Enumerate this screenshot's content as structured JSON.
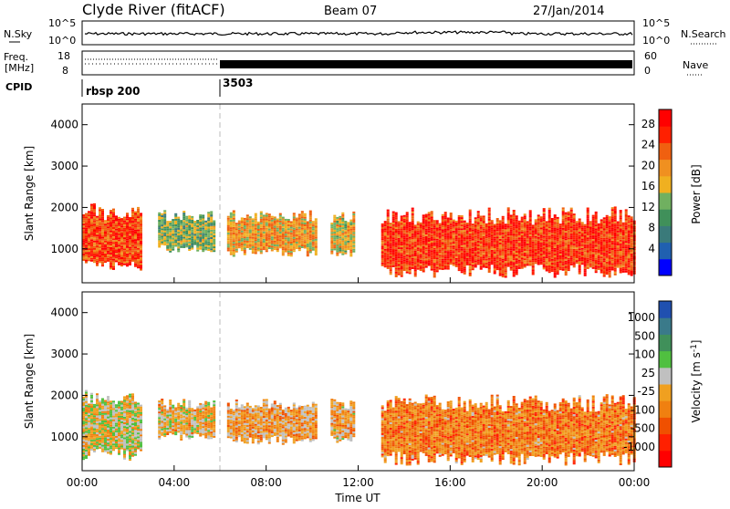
{
  "header": {
    "title": "Clyde River (fitACF)",
    "beam": "Beam 07",
    "date": "27/Jan/2014"
  },
  "noise_panel": {
    "left_label": "N.Sky",
    "right_label": "N.Search",
    "left_ticks": [
      "10^5",
      "10^0"
    ],
    "right_ticks": [
      "10^5",
      "10^0"
    ]
  },
  "freq_panel": {
    "left_label_1": "Freq.",
    "left_label_2": "[MHz]",
    "left_ticks": [
      "18",
      "8"
    ],
    "right_label": "Nave",
    "right_ticks": [
      "60",
      "0"
    ]
  },
  "cpid_panel": {
    "label": "CPID",
    "segments": [
      {
        "label": "rbsp 200",
        "start_hour": 0
      },
      {
        "label": "3503",
        "start_hour": 6
      }
    ]
  },
  "axes": {
    "x_label": "Time UT",
    "x_ticks": [
      "00:00",
      "04:00",
      "08:00",
      "12:00",
      "16:00",
      "20:00",
      "00:00"
    ],
    "y_label": "Slant Range [km]",
    "y_ticks": [
      "1000",
      "2000",
      "3000",
      "4000"
    ]
  },
  "power_colorbar": {
    "label": "Power [dB]",
    "ticks": [
      "4",
      "8",
      "12",
      "16",
      "20",
      "24",
      "28"
    ],
    "colors": [
      "#0000ff",
      "#2060b0",
      "#3a7a7a",
      "#40905a",
      "#70b060",
      "#f0b020",
      "#f09020",
      "#f06010",
      "#ff2000",
      "#ff0000"
    ]
  },
  "velocity_colorbar": {
    "label": "Velocity [m s",
    "label_sup": "-1",
    "label_end": "]",
    "ticks": [
      "1000",
      "500",
      "100",
      "25",
      "-25",
      "-100",
      "-500",
      "-1000"
    ],
    "colors": [
      "#2050b0",
      "#3a7a8a",
      "#40905a",
      "#50c040",
      "#c0c0c0",
      "#f0a020",
      "#f08010",
      "#f05000",
      "#ff2000",
      "#ff0000"
    ]
  },
  "chart_data": {
    "type": "heatmap",
    "title": "Clyde River (fitACF)",
    "subtitle": "Beam 07",
    "date": "27/Jan/2014",
    "xlabel": "Time UT",
    "ylabel": "Slant Range [km]",
    "xlim_hours": [
      0,
      24
    ],
    "ylim_km": [
      180,
      4500
    ],
    "x_ticks": [
      "00:00",
      "04:00",
      "08:00",
      "12:00",
      "16:00",
      "20:00",
      "00:00"
    ],
    "y_ticks": [
      1000,
      2000,
      3000,
      4000
    ],
    "panels": [
      {
        "name": "Power",
        "unit": "dB",
        "colorbar_ticks": [
          4,
          8,
          12,
          16,
          20,
          24,
          28
        ],
        "regions": [
          {
            "t0": 0.0,
            "t1": 2.6,
            "r0": 400,
            "r1": 2100,
            "value": 26
          },
          {
            "t0": 3.3,
            "t1": 5.7,
            "r0": 900,
            "r1": 1900,
            "value": 14
          },
          {
            "t0": 6.3,
            "t1": 10.2,
            "r0": 800,
            "r1": 1900,
            "value": 20
          },
          {
            "t0": 10.8,
            "t1": 11.8,
            "r0": 800,
            "r1": 1900,
            "value": 18
          },
          {
            "t0": 13.0,
            "t1": 24.0,
            "r0": 300,
            "r1": 2000,
            "value": 27
          }
        ]
      },
      {
        "name": "Velocity",
        "unit": "m s-1",
        "colorbar_ticks": [
          1000,
          500,
          100,
          25,
          -25,
          -100,
          -500,
          -1000
        ],
        "regions": [
          {
            "t0": 0.0,
            "t1": 2.6,
            "r0": 400,
            "r1": 2100,
            "value": 50
          },
          {
            "t0": 3.3,
            "t1": 5.7,
            "r0": 900,
            "r1": 1900,
            "value": -100
          },
          {
            "t0": 6.3,
            "t1": 10.2,
            "r0": 800,
            "r1": 1900,
            "value": -200
          },
          {
            "t0": 10.8,
            "t1": 11.8,
            "r0": 800,
            "r1": 1900,
            "value": -150
          },
          {
            "t0": 13.0,
            "t1": 24.0,
            "r0": 300,
            "r1": 2000,
            "value": -400
          }
        ]
      }
    ],
    "cpid": [
      {
        "label": "rbsp 200",
        "start_hour": 0,
        "end_hour": 6
      },
      {
        "label": "3503",
        "start_hour": 6,
        "end_hour": 24
      }
    ]
  }
}
